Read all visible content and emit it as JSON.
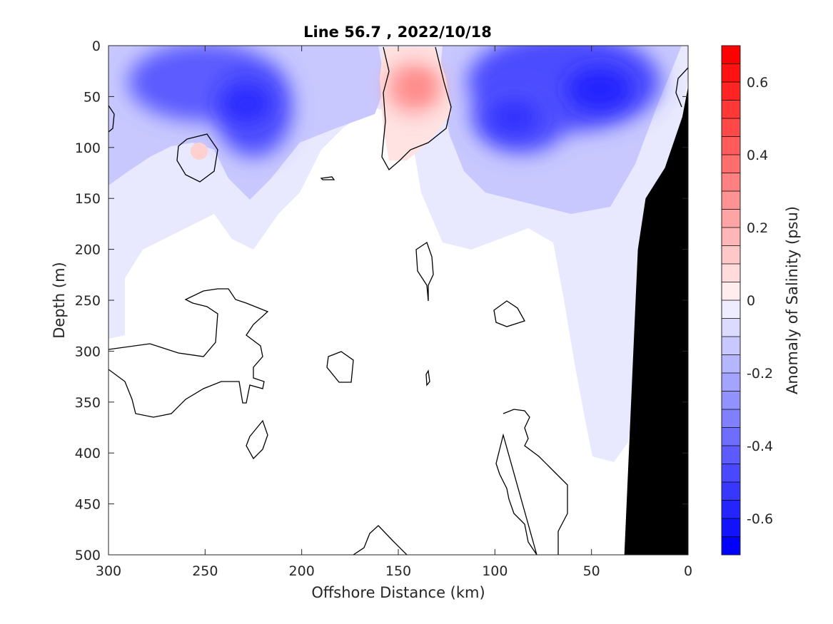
{
  "chart_data": {
    "type": "heatmap",
    "title": "Line 56.7 , 2022/10/18",
    "xlabel": "Offshore Distance (km)",
    "ylabel": "Depth (m)",
    "colorbar_label": "Anomaly of Salinity (psu)",
    "xlim": [
      300,
      0
    ],
    "ylim": [
      0,
      500
    ],
    "x_ticks": [
      300,
      250,
      200,
      150,
      100,
      50,
      0
    ],
    "y_ticks": [
      0,
      50,
      100,
      150,
      200,
      250,
      300,
      350,
      400,
      450,
      500
    ],
    "colorbar_range": [
      -0.7,
      0.7
    ],
    "colorbar_levels": 28,
    "colorbar_ticks": [
      0.6,
      0.4,
      0.2,
      0,
      -0.2,
      -0.4,
      -0.6
    ],
    "colorbar_tick_labels": [
      "0.6",
      "0.4",
      "0.2",
      "0",
      "-0.2",
      "-0.4",
      "-0.6"
    ],
    "colors": {
      "negative": "#0000ff",
      "positive": "#ff0000",
      "zero": "#ffffff",
      "bathymetry": "#000000"
    },
    "anomaly_features": [
      {
        "type": "fresh",
        "x": 240,
        "depth": 40,
        "value": -0.45
      },
      {
        "type": "fresh",
        "x": 222,
        "depth": 60,
        "value": -0.5
      },
      {
        "type": "salty",
        "x": 138,
        "depth": 40,
        "value": 0.22
      },
      {
        "type": "fresh",
        "x": 88,
        "depth": 75,
        "value": -0.45
      },
      {
        "type": "fresh",
        "x": 45,
        "depth": 45,
        "value": -0.5
      },
      {
        "type": "salty",
        "x": 253,
        "depth": 100,
        "value": 0.06
      }
    ],
    "bathymetry": [
      [
        33,
        500
      ],
      [
        26,
        200
      ],
      [
        22,
        150
      ],
      [
        12,
        120
      ],
      [
        3,
        70
      ],
      [
        0,
        40
      ]
    ]
  }
}
